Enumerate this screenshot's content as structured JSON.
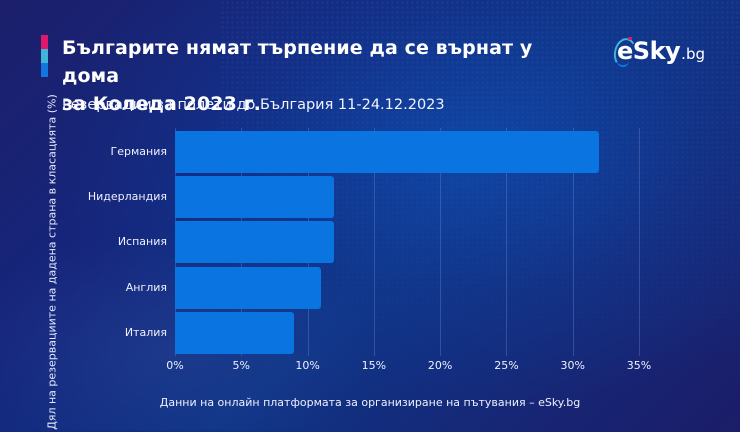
{
  "header": {
    "title_line1": "Българите нямат търпение да се върнат у дома",
    "title_line2": "за Коледа 2023 г.",
    "subtitle": "Резервации за полети до България 11-24.12.2023"
  },
  "logo": {
    "main": "eSky",
    "tld": ".bg"
  },
  "colors": {
    "bar": "#0a74e0",
    "accent_pink": "#e0176b",
    "accent_cyan": "#3fb6d8",
    "accent_blue": "#1376e0",
    "background": "#15267c"
  },
  "footer": {
    "source": "Данни на онлайн платформата за организиране на пътувания – eSky.bg"
  },
  "chart_data": {
    "type": "bar",
    "orientation": "horizontal",
    "title": "Българите нямат търпение да се върнат у дома за Коледа 2023 г.",
    "subtitle": "Резервации за полети до България 11-24.12.2023",
    "categories": [
      "Германия",
      "Нидерландия",
      "Испания",
      "Англия",
      "Италия"
    ],
    "values": [
      32,
      12,
      12,
      11,
      9
    ],
    "xlabel": "",
    "ylabel": "Дял на резервациите на дадена страна в класацията (%)",
    "xlim": [
      0,
      35
    ],
    "xticks": [
      "0%",
      "5%",
      "10%",
      "15%",
      "20%",
      "25%",
      "30%",
      "35%"
    ],
    "grid": "vertical",
    "legend": null,
    "annotation": "Данни на онлайн платформата за организиране на пътувания – eSky.bg"
  }
}
